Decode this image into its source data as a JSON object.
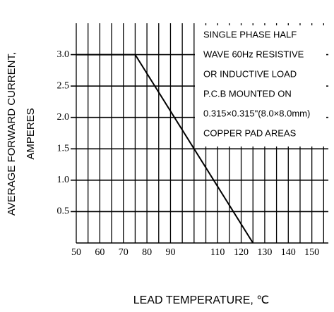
{
  "chart_data": {
    "type": "line",
    "ylabel": [
      "AVERAGE FORWARD CURRENT,",
      "AMPERES"
    ],
    "xlabel": "LEAD TEMPERATURE, ℃",
    "annotation": [
      "SINGLE PHASE HALF",
      "WAVE 60Hz RESISTIVE",
      "OR INDUCTIVE LOAD",
      "P.C.B MOUNTED ON",
      "0.315×0.315\"(8.0×8.0mm)",
      "COPPER PAD AREAS"
    ],
    "x": [
      50,
      75,
      125
    ],
    "series": [
      {
        "color": "#000000",
        "values": [
          3,
          3,
          0
        ]
      }
    ],
    "xlim": [
      50,
      157
    ],
    "ylim": [
      0,
      3.5
    ],
    "xticks": [
      50,
      60,
      70,
      80,
      90,
      110,
      120,
      130,
      140,
      150
    ],
    "yticks": [
      0.5,
      {
        "value": 1,
        "label": "1.0"
      },
      1.5,
      {
        "value": 2,
        "label": "2.0"
      },
      2.5,
      {
        "value": 3,
        "label": "3.0"
      }
    ],
    "xgrid": [
      50,
      55,
      60,
      65,
      70,
      75,
      80,
      85,
      90,
      95,
      100,
      105,
      110,
      115,
      120,
      125,
      130,
      135,
      140,
      145,
      150,
      155
    ],
    "grid": true
  }
}
